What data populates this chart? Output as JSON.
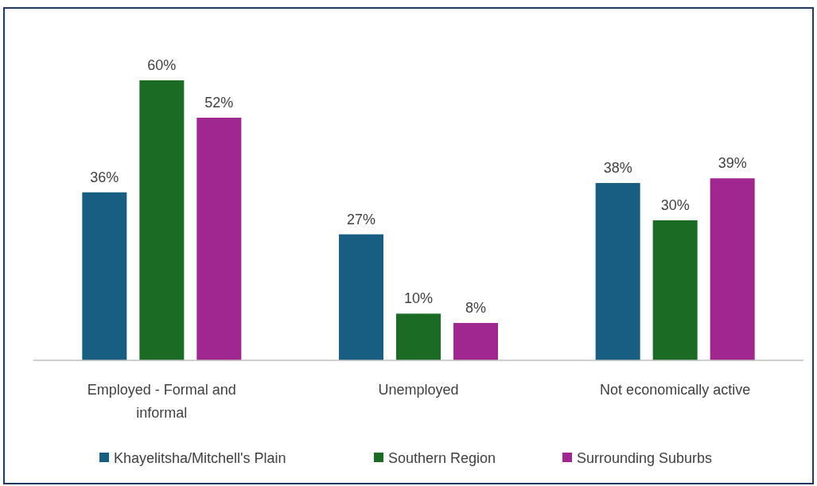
{
  "chart_data": {
    "type": "bar",
    "categories": [
      "Employed - Formal and informal",
      "Unemployed",
      "Not economically active"
    ],
    "series": [
      {
        "name": "Khayelitsha/Mitchell's Plain",
        "color": "#175e82",
        "values": [
          36,
          27,
          38
        ],
        "value_labels": [
          "36%",
          "27%",
          "38%"
        ]
      },
      {
        "name": "Southern Region",
        "color": "#1c6b25",
        "values": [
          60,
          10,
          30
        ],
        "value_labels": [
          "60%",
          "10%",
          "30%"
        ]
      },
      {
        "name": "Surrounding Suburbs",
        "color": "#a0278f",
        "values": [
          52,
          8,
          39
        ],
        "value_labels": [
          "52%",
          "8%",
          "39%"
        ]
      }
    ],
    "legend": "bottom"
  }
}
